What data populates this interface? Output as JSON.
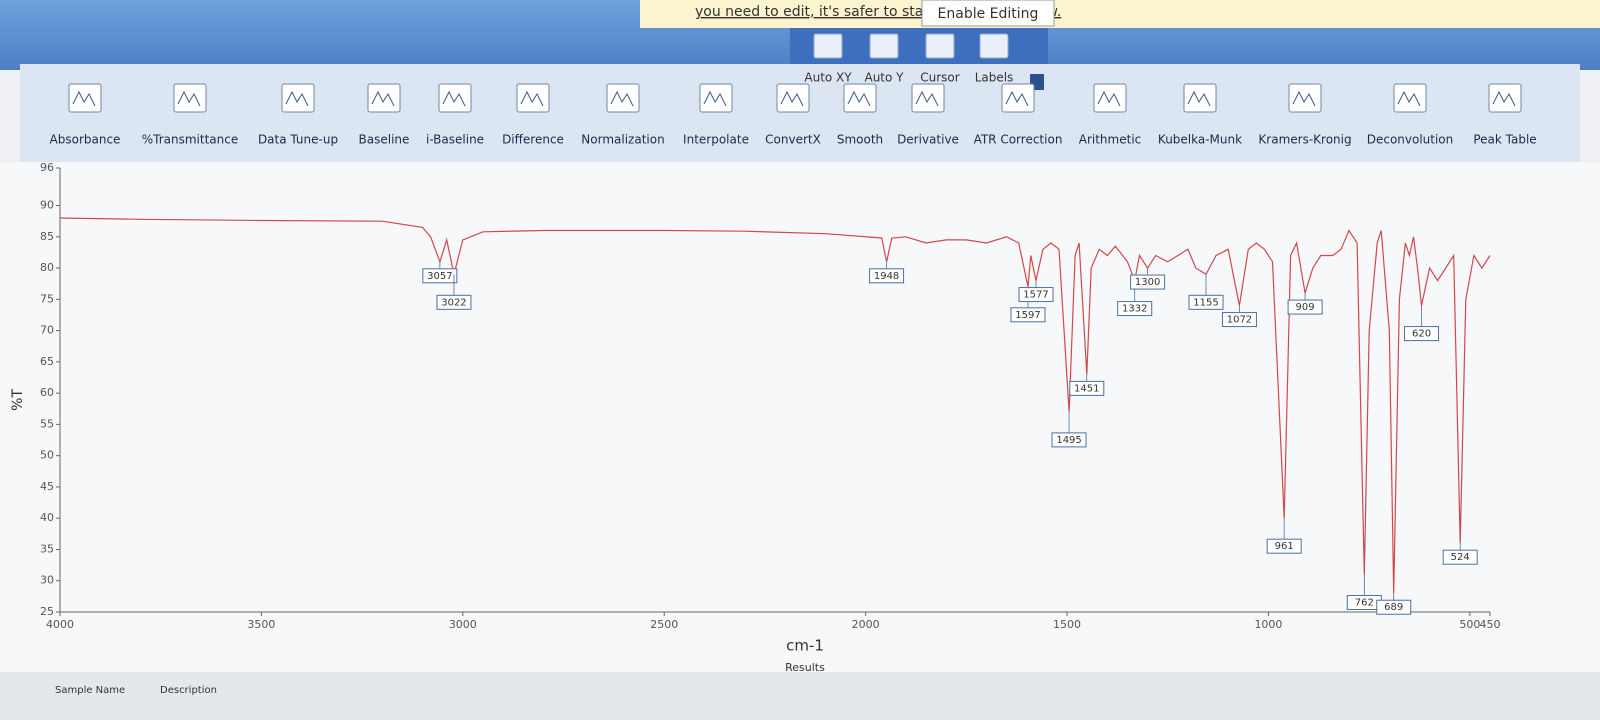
{
  "banner": {
    "message": "you need to edit, it's safer to stay in Protected View.",
    "button": "Enable Editing"
  },
  "toolbar": {
    "view_tools": [
      "Auto XY",
      "Auto Y",
      "Cursor",
      "Labels"
    ],
    "tools": [
      "Absorbance",
      "%Transmittance",
      "Data Tune-up",
      "Baseline",
      "i-Baseline",
      "Difference",
      "Normalization",
      "Interpolate",
      "ConvertX",
      "Smooth",
      "Derivative",
      "ATR Correction",
      "Arithmetic",
      "Kubelka-Munk",
      "Kramers-Kronig",
      "Deconvolution",
      "Peak Table"
    ]
  },
  "chart_data": {
    "type": "line",
    "xlabel": "cm-1",
    "ylabel": "%T",
    "color": "#d2474b",
    "xlim": [
      4000,
      450
    ],
    "ylim": [
      25,
      96
    ],
    "xticks": [
      4000,
      3500,
      3000,
      2500,
      2000,
      1500,
      1000,
      500,
      450
    ],
    "yticks": [
      25,
      30,
      35,
      40,
      45,
      50,
      55,
      60,
      65,
      70,
      75,
      80,
      85,
      90,
      96
    ],
    "grid": false,
    "x": [
      4000,
      3800,
      3500,
      3200,
      3100,
      3080,
      3057,
      3040,
      3022,
      3000,
      2950,
      2800,
      2500,
      2300,
      2100,
      1960,
      1948,
      1935,
      1900,
      1850,
      1800,
      1750,
      1700,
      1650,
      1620,
      1597,
      1590,
      1577,
      1560,
      1540,
      1520,
      1495,
      1480,
      1470,
      1451,
      1440,
      1420,
      1400,
      1380,
      1350,
      1332,
      1320,
      1300,
      1280,
      1250,
      1200,
      1180,
      1155,
      1130,
      1100,
      1072,
      1050,
      1030,
      1010,
      990,
      961,
      945,
      930,
      909,
      890,
      870,
      840,
      820,
      800,
      780,
      762,
      750,
      730,
      720,
      700,
      689,
      675,
      660,
      650,
      640,
      630,
      620,
      600,
      580,
      560,
      540,
      524,
      510,
      490,
      470,
      450
    ],
    "values": [
      88,
      87.8,
      87.6,
      87.5,
      86.5,
      85,
      81,
      84.5,
      79,
      84.5,
      85.8,
      86,
      86,
      85.9,
      85.5,
      84.8,
      81,
      84.8,
      85,
      84,
      84.5,
      84.5,
      84,
      85,
      84,
      77,
      82,
      78,
      83,
      84,
      83,
      57,
      82,
      84,
      63,
      80,
      83,
      82,
      83.5,
      81,
      78,
      82,
      80,
      82,
      81,
      83,
      80,
      79,
      82,
      83,
      74,
      83,
      84,
      83,
      81,
      40,
      82,
      84,
      76,
      80,
      82,
      82,
      83,
      86,
      84,
      31,
      70,
      84,
      86,
      70,
      28,
      75,
      84,
      82,
      85,
      80,
      74,
      80,
      78,
      80,
      82,
      36,
      75,
      82,
      80,
      82
    ],
    "peak_labels": [
      3057,
      3022,
      1948,
      1597,
      1577,
      1495,
      1451,
      1332,
      1300,
      1155,
      1072,
      961,
      909,
      762,
      689,
      620,
      524
    ],
    "caption": "Results"
  },
  "footer": {
    "sample_name": "Sample Name",
    "description": "Description"
  }
}
